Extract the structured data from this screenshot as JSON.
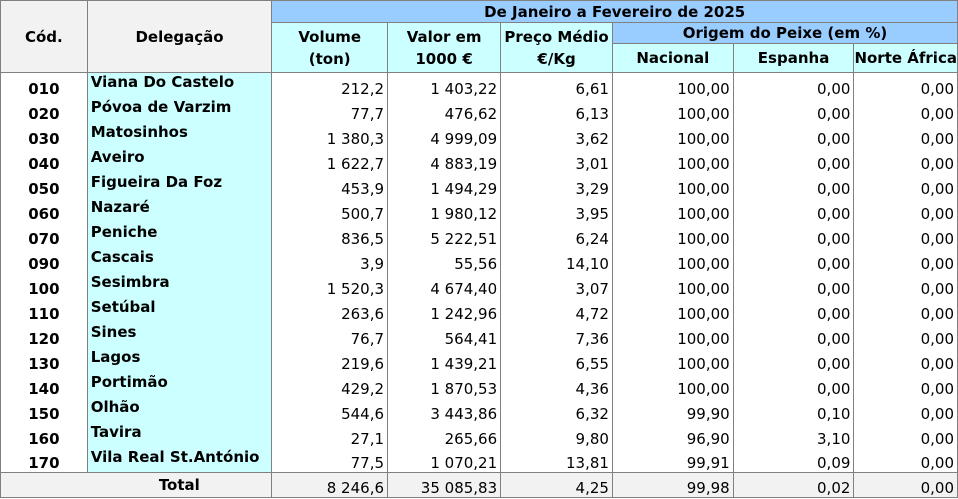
{
  "header": {
    "period_title": "De Janeiro a Fevereiro de 2025",
    "col_code": "Cód.",
    "col_delegation": "Delegação",
    "col_volume_line1": "Volume",
    "col_volume_line2": "(ton)",
    "col_value_line1": "Valor em",
    "col_value_line2": "1000 €",
    "col_price_line1": "Preço Médio",
    "col_price_line2": "€/Kg",
    "origin_group": "Origem do Peixe (em %)",
    "col_national": "Nacional",
    "col_spain": "Espanha",
    "col_north_africa": "Norte África"
  },
  "rows": [
    {
      "code": "010",
      "name": "Viana Do Castelo",
      "volume": "212,2",
      "value": "1 403,22",
      "price": "6,61",
      "national": "100,00",
      "spain": "0,00",
      "north_africa": "0,00"
    },
    {
      "code": "020",
      "name": "Póvoa de Varzim",
      "volume": "77,7",
      "value": "476,62",
      "price": "6,13",
      "national": "100,00",
      "spain": "0,00",
      "north_africa": "0,00"
    },
    {
      "code": "030",
      "name": "Matosinhos",
      "volume": "1 380,3",
      "value": "4 999,09",
      "price": "3,62",
      "national": "100,00",
      "spain": "0,00",
      "north_africa": "0,00"
    },
    {
      "code": "040",
      "name": "Aveiro",
      "volume": "1 622,7",
      "value": "4 883,19",
      "price": "3,01",
      "national": "100,00",
      "spain": "0,00",
      "north_africa": "0,00"
    },
    {
      "code": "050",
      "name": "Figueira Da Foz",
      "volume": "453,9",
      "value": "1 494,29",
      "price": "3,29",
      "national": "100,00",
      "spain": "0,00",
      "north_africa": "0,00"
    },
    {
      "code": "060",
      "name": "Nazaré",
      "volume": "500,7",
      "value": "1 980,12",
      "price": "3,95",
      "national": "100,00",
      "spain": "0,00",
      "north_africa": "0,00"
    },
    {
      "code": "070",
      "name": "Peniche",
      "volume": "836,5",
      "value": "5 222,51",
      "price": "6,24",
      "national": "100,00",
      "spain": "0,00",
      "north_africa": "0,00"
    },
    {
      "code": "090",
      "name": "Cascais",
      "volume": "3,9",
      "value": "55,56",
      "price": "14,10",
      "national": "100,00",
      "spain": "0,00",
      "north_africa": "0,00"
    },
    {
      "code": "100",
      "name": "Sesimbra",
      "volume": "1 520,3",
      "value": "4 674,40",
      "price": "3,07",
      "national": "100,00",
      "spain": "0,00",
      "north_africa": "0,00"
    },
    {
      "code": "110",
      "name": "Setúbal",
      "volume": "263,6",
      "value": "1 242,96",
      "price": "4,72",
      "national": "100,00",
      "spain": "0,00",
      "north_africa": "0,00"
    },
    {
      "code": "120",
      "name": "Sines",
      "volume": "76,7",
      "value": "564,41",
      "price": "7,36",
      "national": "100,00",
      "spain": "0,00",
      "north_africa": "0,00"
    },
    {
      "code": "130",
      "name": "Lagos",
      "volume": "219,6",
      "value": "1 439,21",
      "price": "6,55",
      "national": "100,00",
      "spain": "0,00",
      "north_africa": "0,00"
    },
    {
      "code": "140",
      "name": "Portimão",
      "volume": "429,2",
      "value": "1 870,53",
      "price": "4,36",
      "national": "100,00",
      "spain": "0,00",
      "north_africa": "0,00"
    },
    {
      "code": "150",
      "name": "Olhão",
      "volume": "544,6",
      "value": "3 443,86",
      "price": "6,32",
      "national": "99,90",
      "spain": "0,10",
      "north_africa": "0,00"
    },
    {
      "code": "160",
      "name": "Tavira",
      "volume": "27,1",
      "value": "265,66",
      "price": "9,80",
      "national": "96,90",
      "spain": "3,10",
      "north_africa": "0,00"
    },
    {
      "code": "170",
      "name": "Vila Real St.António",
      "volume": "77,5",
      "value": "1 070,21",
      "price": "13,81",
      "national": "99,91",
      "spain": "0,09",
      "north_africa": "0,00"
    }
  ],
  "total": {
    "label": "Total",
    "volume": "8 246,6",
    "value": "35 085,83",
    "price": "4,25",
    "national": "99,98",
    "spain": "0,02",
    "north_africa": "0,00"
  }
}
